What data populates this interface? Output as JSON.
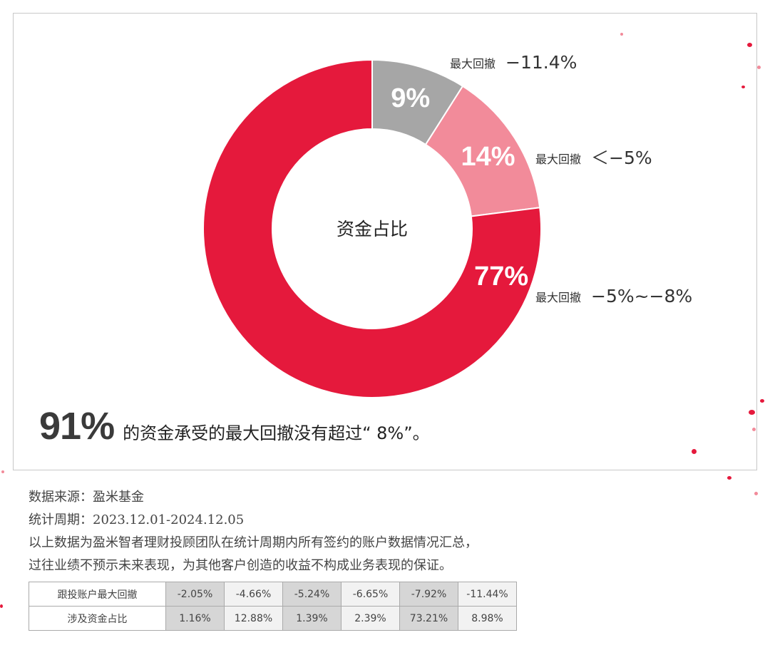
{
  "chart_data": {
    "type": "pie",
    "center_label": "资金占比",
    "slices": [
      {
        "label": "最大回撤",
        "range": "−11.4%",
        "value": 9,
        "value_text": "9%",
        "color": "#a6a6a6"
      },
      {
        "label": "最大回撤",
        "range": "＜−5%",
        "value": 14,
        "value_text": "14%",
        "color": "#f28b9a"
      },
      {
        "label": "最大回撤",
        "range": "−5%~−8%",
        "value": 77,
        "value_text": "77%",
        "color": "#e5193c"
      }
    ]
  },
  "headline": {
    "big": "91%",
    "rest": "的资金承受的最大回撤没有超过“ 8%”。"
  },
  "notes": {
    "source": "数据来源：盈米基金",
    "period": "统计周期：2023.12.01-2024.12.05",
    "line1": "以上数据为盈米智者理财投顾团队在统计周期内所有签约的账户数据情况汇总，",
    "line2": "过往业绩不预示未来表现，为其他客户创造的收益不构成业务表现的保证。"
  },
  "table": {
    "row1_header": "跟投账户最大回撤",
    "row2_header": "涉及资金占比",
    "row1": [
      "-2.05%",
      "-4.66%",
      "-5.24%",
      "-6.65%",
      "-7.92%",
      "-11.44%"
    ],
    "row2": [
      "1.16%",
      "12.88%",
      "1.39%",
      "2.39%",
      "73.21%",
      "8.98%"
    ]
  }
}
